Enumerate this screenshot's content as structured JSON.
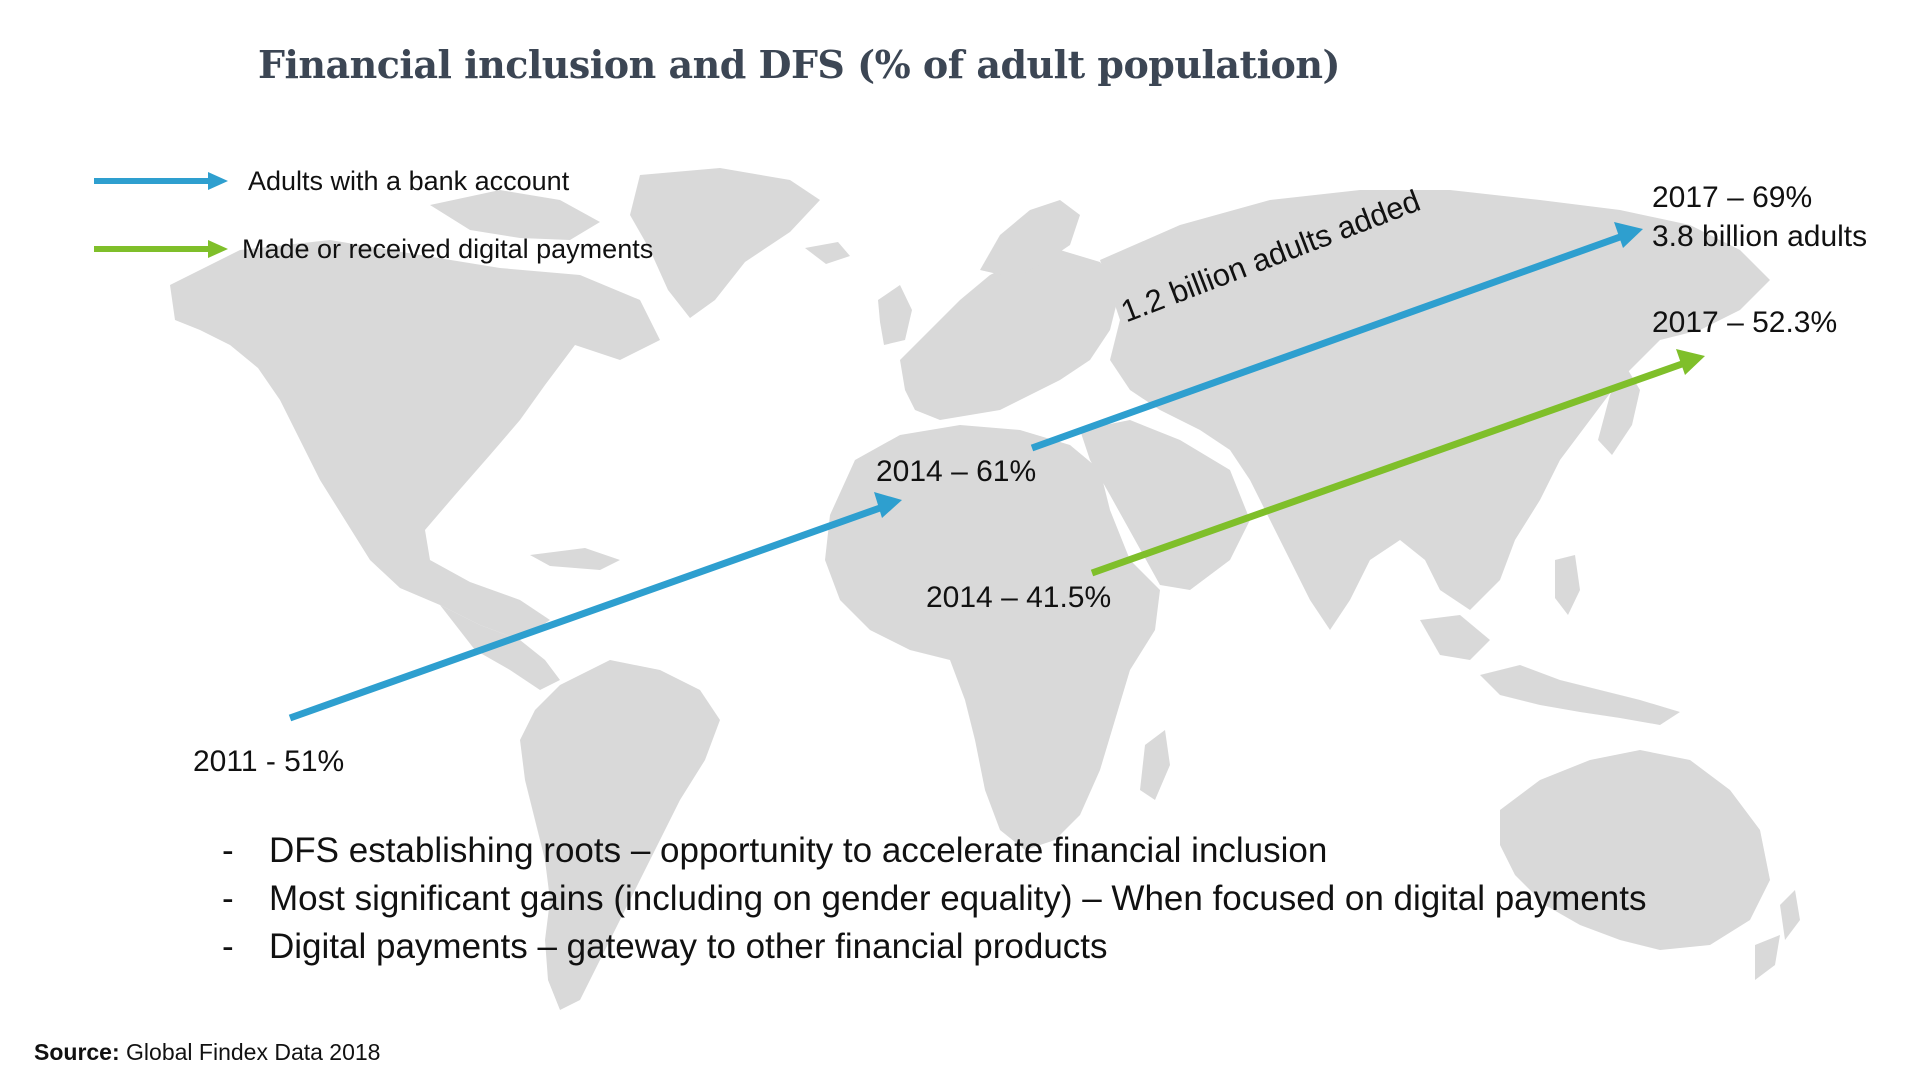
{
  "title": "Financial inclusion and DFS (% of adult population)",
  "colors": {
    "bank_account": "#2e9fcf",
    "digital_payments": "#7fbf2a",
    "map_land": "#d9d9d9",
    "title": "#3c4654"
  },
  "legend": [
    {
      "label": "Adults with a bank account",
      "color": "#2e9fcf",
      "icon": "arrow-right-icon"
    },
    {
      "label": "Made or received digital payments",
      "color": "#7fbf2a",
      "icon": "arrow-right-icon"
    }
  ],
  "series": [
    {
      "name": "Adults with a bank account",
      "color": "#2e9fcf",
      "points": [
        {
          "year": 2011,
          "value": 51
        },
        {
          "year": 2014,
          "value": 61
        },
        {
          "year": 2017,
          "value": 69
        }
      ]
    },
    {
      "name": "Made or received digital payments",
      "color": "#7fbf2a",
      "points": [
        {
          "year": 2014,
          "value": 41.5
        },
        {
          "year": 2017,
          "value": 52.3
        }
      ]
    }
  ],
  "annotations": {
    "bank_2011": "2011 - 51%",
    "bank_2014": "2014 – 61%",
    "bank_2017": "2017 – 69%",
    "bank_2017_adults": "3.8 billion adults",
    "adults_added": "1.2 billion adults added",
    "digital_2014": "2014 – 41.5%",
    "digital_2017": "2017 – 52.3%"
  },
  "bullets": [
    {
      "dash": "-",
      "text": "DFS establishing roots – opportunity to accelerate financial inclusion"
    },
    {
      "dash": "-",
      "text": "Most significant gains (including on gender equality) – When focused on digital payments"
    },
    {
      "dash": "-",
      "text": "Digital payments – gateway to other financial products"
    }
  ],
  "source": {
    "label": "Source:",
    "text": "Global Findex Data 2018"
  }
}
